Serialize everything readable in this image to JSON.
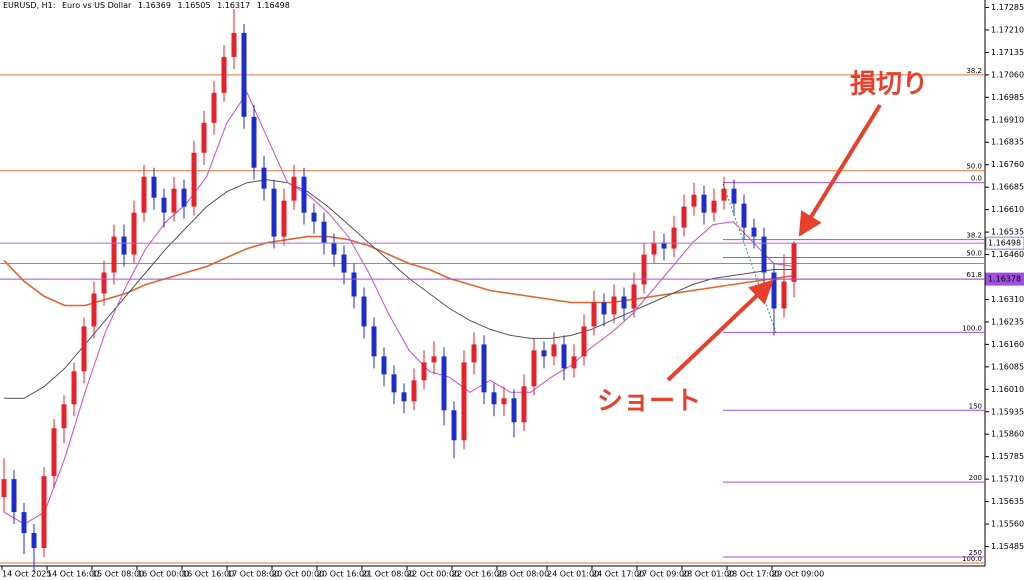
{
  "chart_data": {
    "type": "candlestick",
    "symbol": "EURUSD, H1:",
    "description": "Euro vs US Dollar",
    "ohlc_header": [
      1.16369,
      1.16505,
      1.16317,
      1.16498
    ],
    "up_color": "#e8202a",
    "down_color": "#1c2cd1",
    "ylim": [
      1.1542,
      1.1731
    ],
    "yticks": [
      1.17285,
      {
        "value": 1.1721,
        "label": "1.17210"
      },
      1.17135,
      {
        "value": 1.1706,
        "label": "1.17060"
      },
      1.16985,
      {
        "value": 1.1691,
        "label": "1.16910"
      },
      1.16835,
      {
        "value": 1.1676,
        "label": "1.16760"
      },
      1.16685,
      {
        "value": 1.1661,
        "label": "1.16610"
      },
      1.16535,
      {
        "value": 1.1646,
        "label": "1.16460"
      },
      {
        "value": 1.1631,
        "label": "1.16310"
      },
      1.16235,
      {
        "value": 1.1616,
        "label": "1.16160"
      },
      1.16085,
      {
        "value": 1.1601,
        "label": "1.16010"
      },
      1.15935,
      {
        "value": 1.1586,
        "label": "1.15860"
      },
      1.15785,
      {
        "value": 1.1571,
        "label": "1.15710"
      },
      1.15635,
      {
        "value": 1.1556,
        "label": "1.15560"
      },
      1.15485
    ],
    "x_labels": [
      "14 Oct 2025",
      "14 Oct 16:00",
      "15 Oct 08:00",
      "16 Oct 00:00",
      "16 Oct 16:00",
      "17 Oct 08:00",
      "20 Oct 00:00",
      "20 Oct 16:00",
      "21 Oct 08:00",
      "22 Oct 00:00",
      "22 Oct 16:00",
      "23 Oct 08:00",
      "24 Oct 01:00",
      "24 Oct 17:00",
      "27 Oct 09:00",
      "28 Oct 01:00",
      "28 Oct 17:00",
      "29 Oct 09:00"
    ],
    "candles": [
      [
        1.1565,
        1.1578,
        1.156,
        1.1571
      ],
      [
        1.1571,
        1.1574,
        1.1556,
        1.156
      ],
      [
        1.156,
        1.1563,
        1.1546,
        1.1553
      ],
      [
        1.1553,
        1.1556,
        1.154,
        1.1548
      ],
      [
        1.1548,
        1.1575,
        1.1545,
        1.1572
      ],
      [
        1.1572,
        1.1591,
        1.1568,
        1.1588
      ],
      [
        1.1588,
        1.1599,
        1.1583,
        1.1596
      ],
      [
        1.1596,
        1.161,
        1.1592,
        1.1607
      ],
      [
        1.1607,
        1.1625,
        1.1603,
        1.1622
      ],
      [
        1.1622,
        1.1637,
        1.1618,
        1.1633
      ],
      [
        1.1633,
        1.1644,
        1.1629,
        1.164
      ],
      [
        1.164,
        1.1656,
        1.1636,
        1.1652
      ],
      [
        1.1652,
        1.1656,
        1.1642,
        1.1646
      ],
      [
        1.1646,
        1.1664,
        1.1643,
        1.166
      ],
      [
        1.166,
        1.1676,
        1.1657,
        1.1672
      ],
      [
        1.1672,
        1.1675,
        1.1661,
        1.1665
      ],
      [
        1.1665,
        1.1668,
        1.1655,
        1.166
      ],
      [
        1.166,
        1.1672,
        1.1657,
        1.1668
      ],
      [
        1.1668,
        1.1671,
        1.1658,
        1.1662
      ],
      [
        1.1662,
        1.1684,
        1.1659,
        1.168
      ],
      [
        1.168,
        1.1694,
        1.1676,
        1.169
      ],
      [
        1.169,
        1.1704,
        1.1686,
        1.17
      ],
      [
        1.17,
        1.1716,
        1.1697,
        1.1712
      ],
      [
        1.1712,
        1.1728,
        1.1708,
        1.172
      ],
      [
        1.172,
        1.1723,
        1.1688,
        1.1692
      ],
      [
        1.1692,
        1.1696,
        1.1671,
        1.1675
      ],
      [
        1.1675,
        1.1679,
        1.1664,
        1.1668
      ],
      [
        1.1668,
        1.1671,
        1.1648,
        1.1652
      ],
      [
        1.1652,
        1.1668,
        1.1649,
        1.1664
      ],
      [
        1.1664,
        1.1676,
        1.1661,
        1.1672
      ],
      [
        1.1672,
        1.1675,
        1.1656,
        1.166
      ],
      [
        1.166,
        1.1663,
        1.1653,
        1.1657
      ],
      [
        1.1657,
        1.166,
        1.1646,
        1.165
      ],
      [
        1.165,
        1.1653,
        1.1642,
        1.1646
      ],
      [
        1.1646,
        1.1649,
        1.1636,
        1.164
      ],
      [
        1.164,
        1.1643,
        1.1628,
        1.1632
      ],
      [
        1.1632,
        1.1635,
        1.1618,
        1.1622
      ],
      [
        1.1622,
        1.1625,
        1.1608,
        1.1612
      ],
      [
        1.1612,
        1.1615,
        1.1602,
        1.1606
      ],
      [
        1.1606,
        1.1609,
        1.1596,
        1.16
      ],
      [
        1.16,
        1.1603,
        1.1593,
        1.1597
      ],
      [
        1.1597,
        1.1608,
        1.1594,
        1.1604
      ],
      [
        1.1604,
        1.1614,
        1.1601,
        1.161
      ],
      [
        1.161,
        1.1617,
        1.1606,
        1.1612
      ],
      [
        1.1612,
        1.1615,
        1.1589,
        1.1594
      ],
      [
        1.1594,
        1.1597,
        1.1578,
        1.1584
      ],
      [
        1.1584,
        1.1614,
        1.1581,
        1.161
      ],
      [
        1.161,
        1.162,
        1.1606,
        1.1616
      ],
      [
        1.1616,
        1.1619,
        1.1596,
        1.16
      ],
      [
        1.16,
        1.1603,
        1.1592,
        1.1596
      ],
      [
        1.1596,
        1.1602,
        1.1592,
        1.1598
      ],
      [
        1.1598,
        1.1601,
        1.1585,
        1.159
      ],
      [
        1.159,
        1.1606,
        1.1587,
        1.1602
      ],
      [
        1.1602,
        1.1618,
        1.1599,
        1.1614
      ],
      [
        1.1614,
        1.1617,
        1.1608,
        1.1612
      ],
      [
        1.1612,
        1.162,
        1.1609,
        1.1616
      ],
      [
        1.1616,
        1.1619,
        1.1604,
        1.1608
      ],
      [
        1.1608,
        1.1616,
        1.1605,
        1.1612
      ],
      [
        1.1612,
        1.1626,
        1.1609,
        1.1622
      ],
      [
        1.1622,
        1.1634,
        1.1619,
        1.163
      ],
      [
        1.163,
        1.1633,
        1.1622,
        1.1626
      ],
      [
        1.1626,
        1.1636,
        1.1623,
        1.1632
      ],
      [
        1.1632,
        1.1635,
        1.1624,
        1.1628
      ],
      [
        1.1628,
        1.164,
        1.1625,
        1.1636
      ],
      [
        1.1636,
        1.165,
        1.1633,
        1.1646
      ],
      [
        1.1646,
        1.1654,
        1.1643,
        1.165
      ],
      [
        1.165,
        1.1653,
        1.1644,
        1.1648
      ],
      [
        1.1648,
        1.1659,
        1.1645,
        1.1655
      ],
      [
        1.1655,
        1.1666,
        1.1652,
        1.1662
      ],
      [
        1.1662,
        1.167,
        1.1659,
        1.1666
      ],
      [
        1.1666,
        1.1669,
        1.1656,
        1.166
      ],
      [
        1.166,
        1.1668,
        1.1657,
        1.1664
      ],
      [
        1.1664,
        1.1672,
        1.1661,
        1.1668
      ],
      [
        1.1668,
        1.1671,
        1.1659,
        1.1663
      ],
      [
        1.1663,
        1.1666,
        1.1651,
        1.1655
      ],
      [
        1.1655,
        1.1658,
        1.1648,
        1.1652
      ],
      [
        1.1652,
        1.1655,
        1.1636,
        1.164
      ],
      [
        1.164,
        1.1643,
        1.1619,
        1.1628
      ],
      [
        1.1628,
        1.1646,
        1.1625,
        1.1637
      ],
      [
        1.16369,
        1.16505,
        1.16317,
        1.16498
      ]
    ],
    "lines": [
      {
        "color": "#e2642a",
        "values": [
          1.1644,
          1.1637,
          1.1632,
          1.1629,
          1.1629,
          1.1631,
          1.1633,
          1.1636,
          1.1638,
          1.164,
          1.1642,
          1.1645,
          1.1648,
          1.165,
          1.1651,
          1.1652,
          1.1652,
          1.1651,
          1.1649,
          1.1646,
          1.1643,
          1.1641,
          1.1638,
          1.1636,
          1.1634,
          1.1633,
          1.1632,
          1.1631,
          1.163,
          1.163,
          1.163,
          1.1631,
          1.1632,
          1.1633,
          1.1634,
          1.1635,
          1.1636,
          1.1637,
          1.1638,
          1.1639
        ]
      },
      {
        "color": "#555555",
        "values": [
          1.1598,
          1.1598,
          1.1602,
          1.1608,
          1.1616,
          1.1624,
          1.1632,
          1.164,
          1.1648,
          1.1655,
          1.1662,
          1.1667,
          1.167,
          1.1671,
          1.167,
          1.1667,
          1.1662,
          1.1656,
          1.165,
          1.1644,
          1.1638,
          1.1633,
          1.1628,
          1.1624,
          1.1621,
          1.1619,
          1.1618,
          1.1618,
          1.1619,
          1.1621,
          1.1624,
          1.1627,
          1.163,
          1.1633,
          1.1636,
          1.1638,
          1.1639,
          1.164,
          1.1641,
          1.1641
        ]
      },
      {
        "color": "#d04ad0",
        "values": [
          1.156,
          1.1556,
          1.156,
          1.1578,
          1.16,
          1.162,
          1.1635,
          1.1648,
          1.1657,
          1.1663,
          1.1672,
          1.169,
          1.17,
          1.1685,
          1.167,
          1.1666,
          1.166,
          1.1652,
          1.164,
          1.1626,
          1.1614,
          1.1607,
          1.1605,
          1.16,
          1.1604,
          1.16,
          1.16,
          1.1605,
          1.1609,
          1.1615,
          1.162,
          1.1626,
          1.1634,
          1.1642,
          1.165,
          1.1656,
          1.1657,
          1.165,
          1.1643,
          1.1642
        ]
      }
    ],
    "fib_orange": {
      "color": "#e8733a",
      "levels": [
        {
          "label": "38.2",
          "price": 1.1706
        },
        {
          "label": "50.0",
          "price": 1.1674
        },
        {
          "price": 1.1643
        },
        {
          "label": "100.0",
          "price": 1.1543
        }
      ]
    },
    "fib_purple": {
      "color": "#a050e0",
      "levels": [
        {
          "label": "0.0",
          "price": 1.167
        },
        {
          "label": "38.2",
          "price": 1.1651
        },
        {
          "label": "50.0",
          "price": 1.1645
        },
        {
          "label": "61.8",
          "price": 1.16378
        },
        {
          "label": "100.0",
          "price": 1.162
        },
        {
          "label": "150",
          "price": 1.1594
        },
        {
          "label": "200",
          "price": 1.157
        },
        {
          "label": "250",
          "price": 1.1545
        }
      ]
    },
    "price_tags": [
      {
        "price": 1.16498,
        "color": "#a070d0",
        "text_color": "#5a2a90",
        "fill": "#ffffff"
      },
      {
        "price": 1.16378,
        "color": "#a050e0",
        "text_color": "#ffffff",
        "fill": "#a050e0"
      }
    ],
    "annotations": [
      "損切り",
      "ショート"
    ]
  }
}
